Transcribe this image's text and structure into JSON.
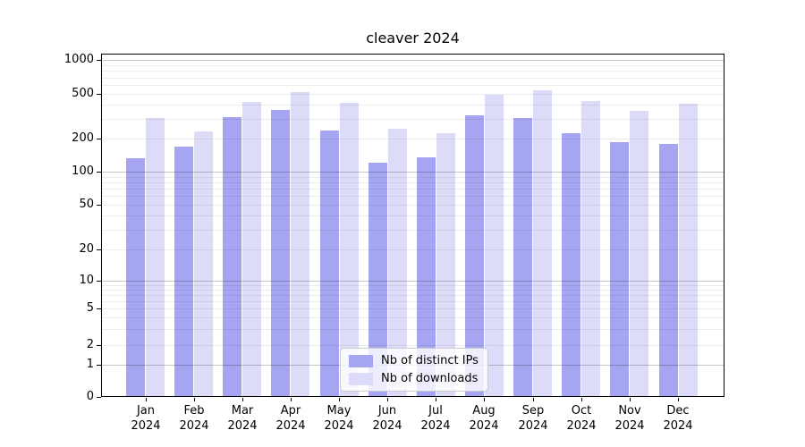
{
  "chart_data": {
    "type": "bar",
    "title": "cleaver 2024",
    "year": "2024",
    "months": [
      "Jan",
      "Feb",
      "Mar",
      "Apr",
      "May",
      "Jun",
      "Jul",
      "Aug",
      "Sep",
      "Oct",
      "Nov",
      "Dec"
    ],
    "series": [
      {
        "name": "Nb of distinct IPs",
        "color": "#a5a5f2",
        "values": [
          133,
          168,
          310,
          360,
          237,
          120,
          136,
          320,
          305,
          222,
          185,
          180
        ]
      },
      {
        "name": "Nb of downloads",
        "color": "#dcdcf8",
        "values": [
          303,
          230,
          425,
          515,
          420,
          245,
          225,
          490,
          540,
          430,
          355,
          405
        ]
      }
    ],
    "xlabel": "",
    "ylabel": "",
    "yscale": "symlog",
    "y_ticks": [
      0,
      1,
      2,
      5,
      10,
      20,
      50,
      100,
      200,
      500,
      1000
    ],
    "ylim": [
      0,
      1100
    ],
    "grid": "horizontal major and minor gridlines",
    "legend_position": "lower center"
  },
  "colors": {
    "background": "#ffffff",
    "bar_distinct_ips": "#a5a5f2",
    "bar_downloads": "#dcdcf8",
    "grid_major": "rgba(0,0,0,0.22)",
    "grid_minor": "rgba(0,0,0,0.07)",
    "spine": "#000000",
    "legend_border": "#cccccc",
    "text": "#000000"
  }
}
